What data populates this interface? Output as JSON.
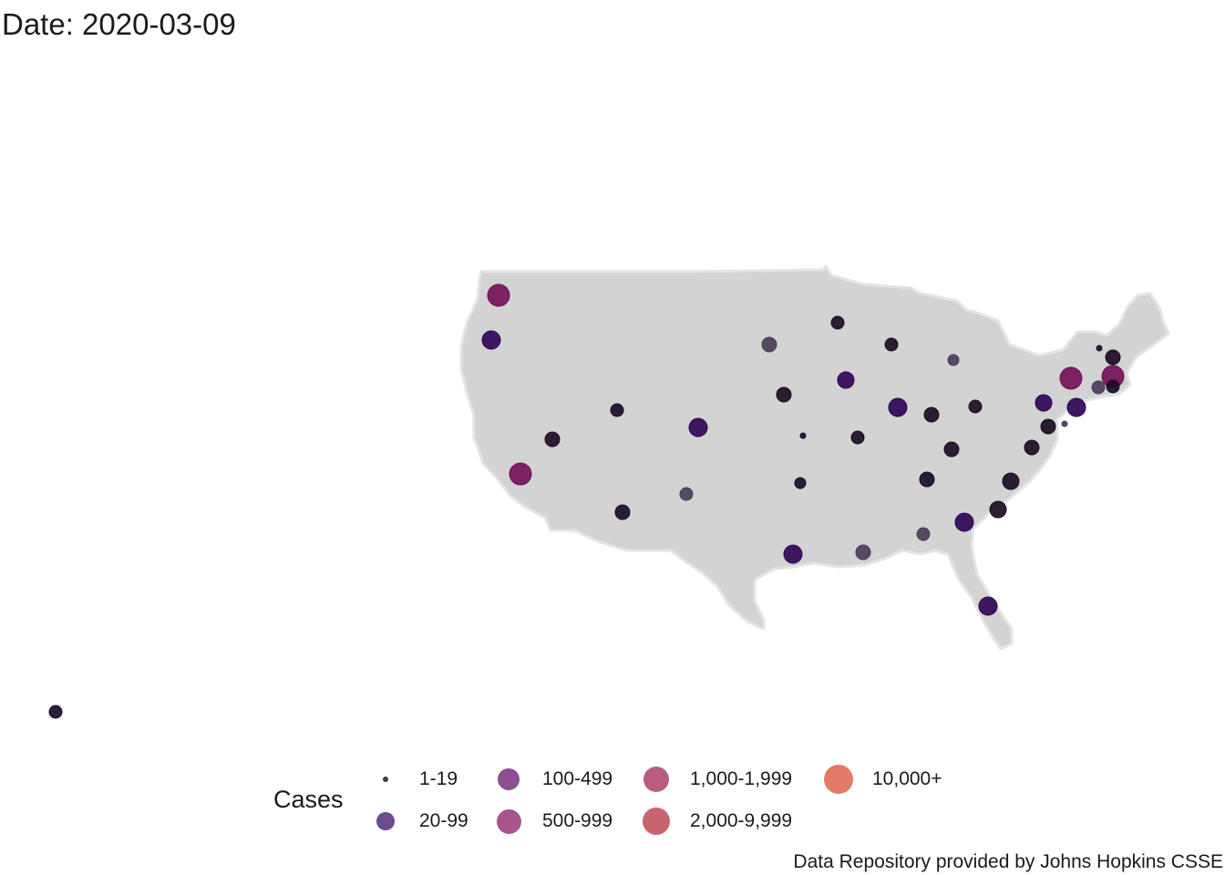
{
  "title": "Date: 2020-03-09",
  "caption": "Data Repository provided by Johns Hopkins CSSE",
  "legend": {
    "title": "Cases",
    "items": [
      {
        "label": "1-19",
        "color": "#3d3d3d"
      },
      {
        "label": "20-99",
        "color": "#6b4c8e"
      },
      {
        "label": "100-499",
        "color": "#8b4f92"
      },
      {
        "label": "500-999",
        "color": "#a6558d"
      },
      {
        "label": "1,000-1,999",
        "color": "#b95d80"
      },
      {
        "label": "2,000-9,999",
        "color": "#c8646f"
      },
      {
        "label": "10,000+",
        "color": "#e27a68"
      }
    ]
  },
  "colors": {
    "land": "#d3d3d3",
    "land_border": "#e4e4e4",
    "dark": "#1b0c25",
    "indigo": "#2f0655",
    "slate": "#4a3d5a",
    "magenta": "#73115a"
  }
}
